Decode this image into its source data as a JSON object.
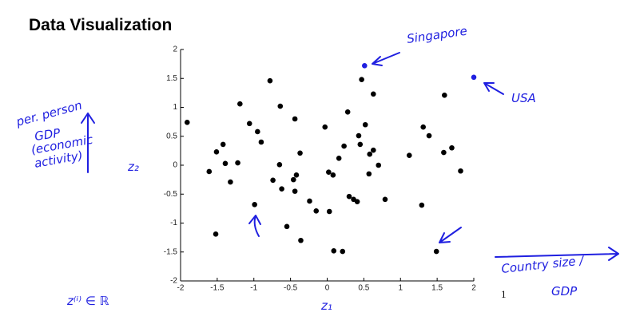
{
  "title": "Data Visualization",
  "page_number": "1",
  "chart_data": {
    "type": "scatter",
    "xlim": [
      -2,
      2
    ],
    "ylim": [
      -2,
      2
    ],
    "xticks": [
      -2,
      -1.5,
      -1,
      -0.5,
      0,
      0.5,
      1,
      1.5,
      2
    ],
    "yticks": [
      -2,
      -1.5,
      -1,
      -0.5,
      0,
      0.5,
      1,
      1.5,
      2
    ],
    "series": [
      {
        "color": "#000000",
        "x": [
          -1.91,
          -1.61,
          -1.51,
          -1.42,
          -1.39,
          -1.32,
          -1.52,
          -1.22,
          -1.19,
          -1.06,
          -0.95,
          -0.9,
          -0.99,
          -0.78,
          -0.74,
          -0.65,
          -0.64,
          -0.62,
          -0.55,
          -0.46,
          -0.44,
          -0.42,
          -0.44,
          -0.37,
          -0.36,
          -0.24,
          -0.15,
          -0.03,
          0.02,
          0.03,
          0.08,
          0.09,
          0.16,
          0.21,
          0.23,
          0.28,
          0.3,
          0.36,
          0.41,
          0.43,
          0.45,
          0.47,
          0.52,
          0.57,
          0.58,
          0.63,
          0.63,
          0.7,
          0.79,
          1.12,
          1.29,
          1.31,
          1.39,
          1.49,
          1.59,
          1.6,
          1.7,
          1.82
        ],
        "values": [
          0.74,
          -0.11,
          0.23,
          0.36,
          0.03,
          -0.29,
          -1.19,
          0.04,
          1.06,
          0.72,
          0.58,
          0.4,
          -0.68,
          1.46,
          -0.26,
          0.01,
          1.02,
          -0.41,
          -1.06,
          -0.25,
          0.8,
          -0.17,
          -0.45,
          0.21,
          -1.3,
          -0.62,
          -0.79,
          0.66,
          -0.12,
          -0.8,
          -0.17,
          -1.48,
          0.12,
          -1.49,
          0.33,
          0.92,
          -0.54,
          -0.59,
          -0.63,
          0.51,
          0.36,
          1.48,
          0.7,
          -0.15,
          0.19,
          0.26,
          1.23,
          0,
          -0.59,
          0.17,
          -0.69,
          0.66,
          0.51,
          -1.49,
          0.22,
          1.21,
          0.3,
          -0.1
        ]
      },
      {
        "color": "#1f1fe0",
        "x": [
          0.51,
          2.0
        ],
        "values": [
          1.72,
          1.52
        ]
      }
    ],
    "annotations": [
      "Singapore",
      "USA",
      "per. person",
      "GDP",
      "(economic",
      "activity)",
      "z₂",
      "z₁",
      "Country size /",
      "GDP",
      "z⁽ⁱ⁾ ∈ ℝ"
    ]
  }
}
